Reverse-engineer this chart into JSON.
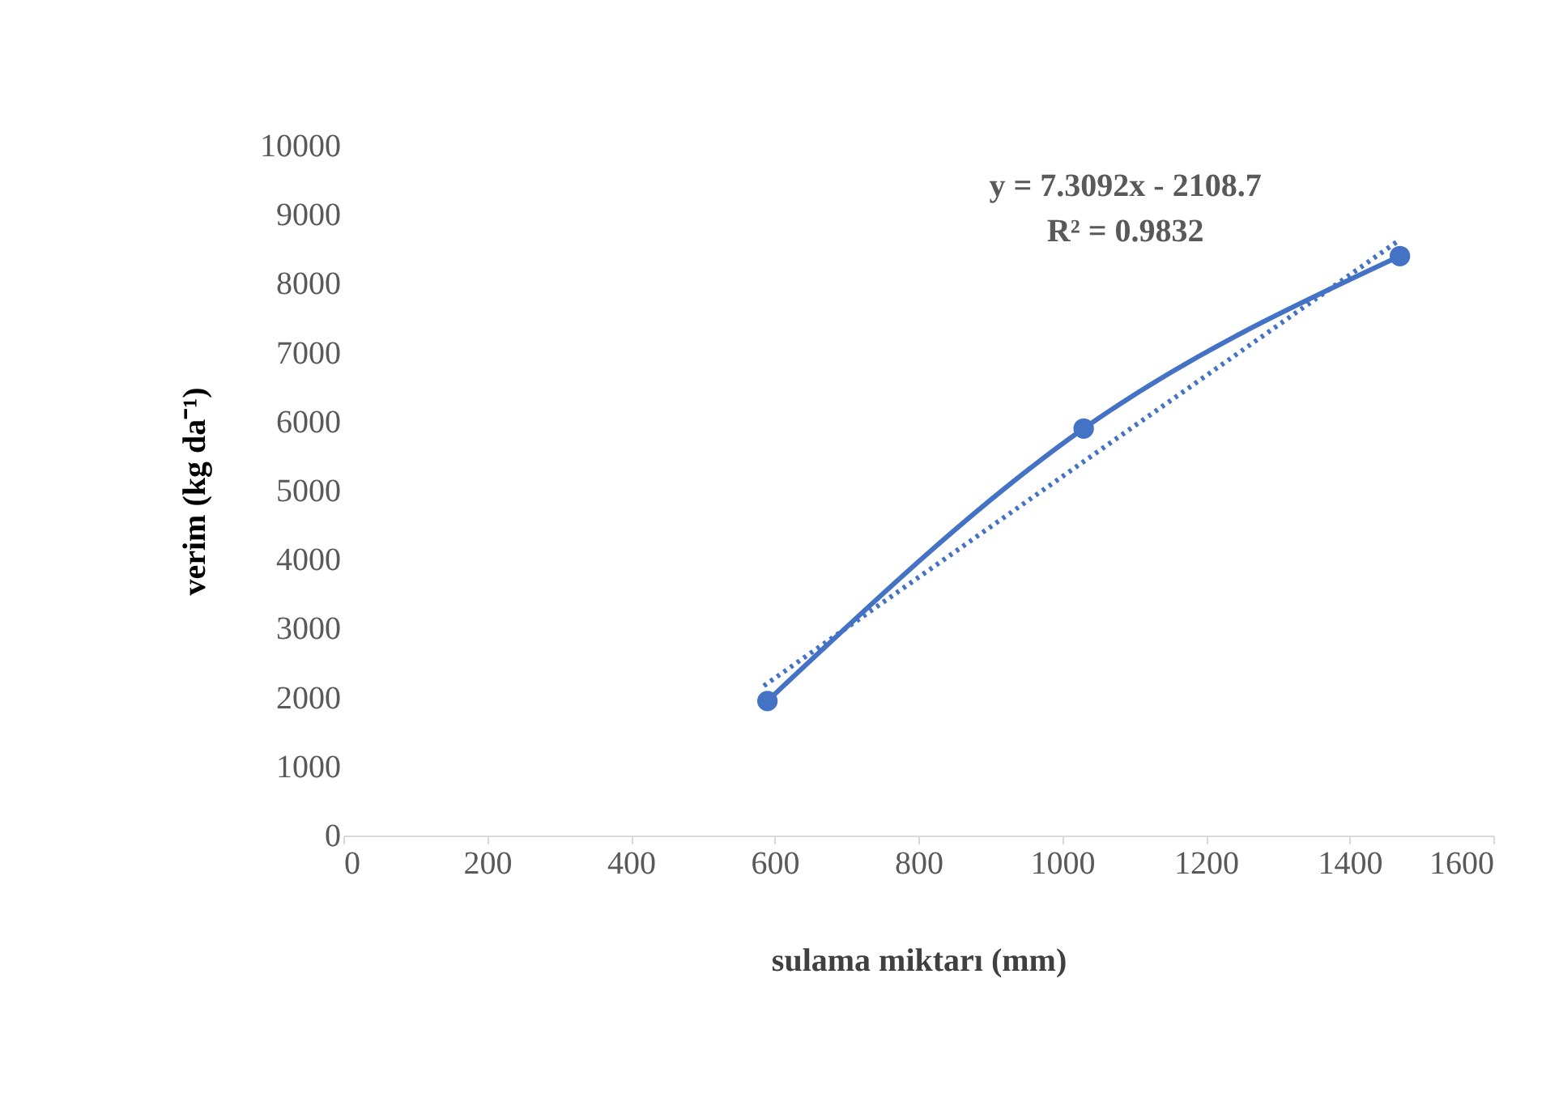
{
  "chart_data": {
    "type": "line",
    "xlabel": "sulama miktarı (mm)",
    "ylabel": "verim (kg da⁻¹)",
    "xlim": [
      0,
      1600
    ],
    "xticks": [
      0,
      200,
      400,
      600,
      800,
      1000,
      1200,
      1400,
      1600
    ],
    "ylim": [
      0,
      10000
    ],
    "yticks": [
      0,
      1000,
      2000,
      3000,
      4000,
      5000,
      6000,
      7000,
      8000,
      9000,
      10000
    ],
    "grid": false,
    "legend": false,
    "series": [
      {
        "color": "#4472c4",
        "marker": "circle",
        "line_style": "solid",
        "x": [
          590,
          1030,
          1470
        ],
        "values": [
          1950,
          5900,
          8400
        ]
      },
      {
        "color": "#4472c4",
        "marker": "none",
        "line_style": "dotted",
        "x": [
          585,
          1465
        ],
        "values": [
          2170,
          8600
        ]
      }
    ],
    "annotations": [
      "y = 7.3092x - 2108.7",
      "R² = 0.9832"
    ]
  }
}
